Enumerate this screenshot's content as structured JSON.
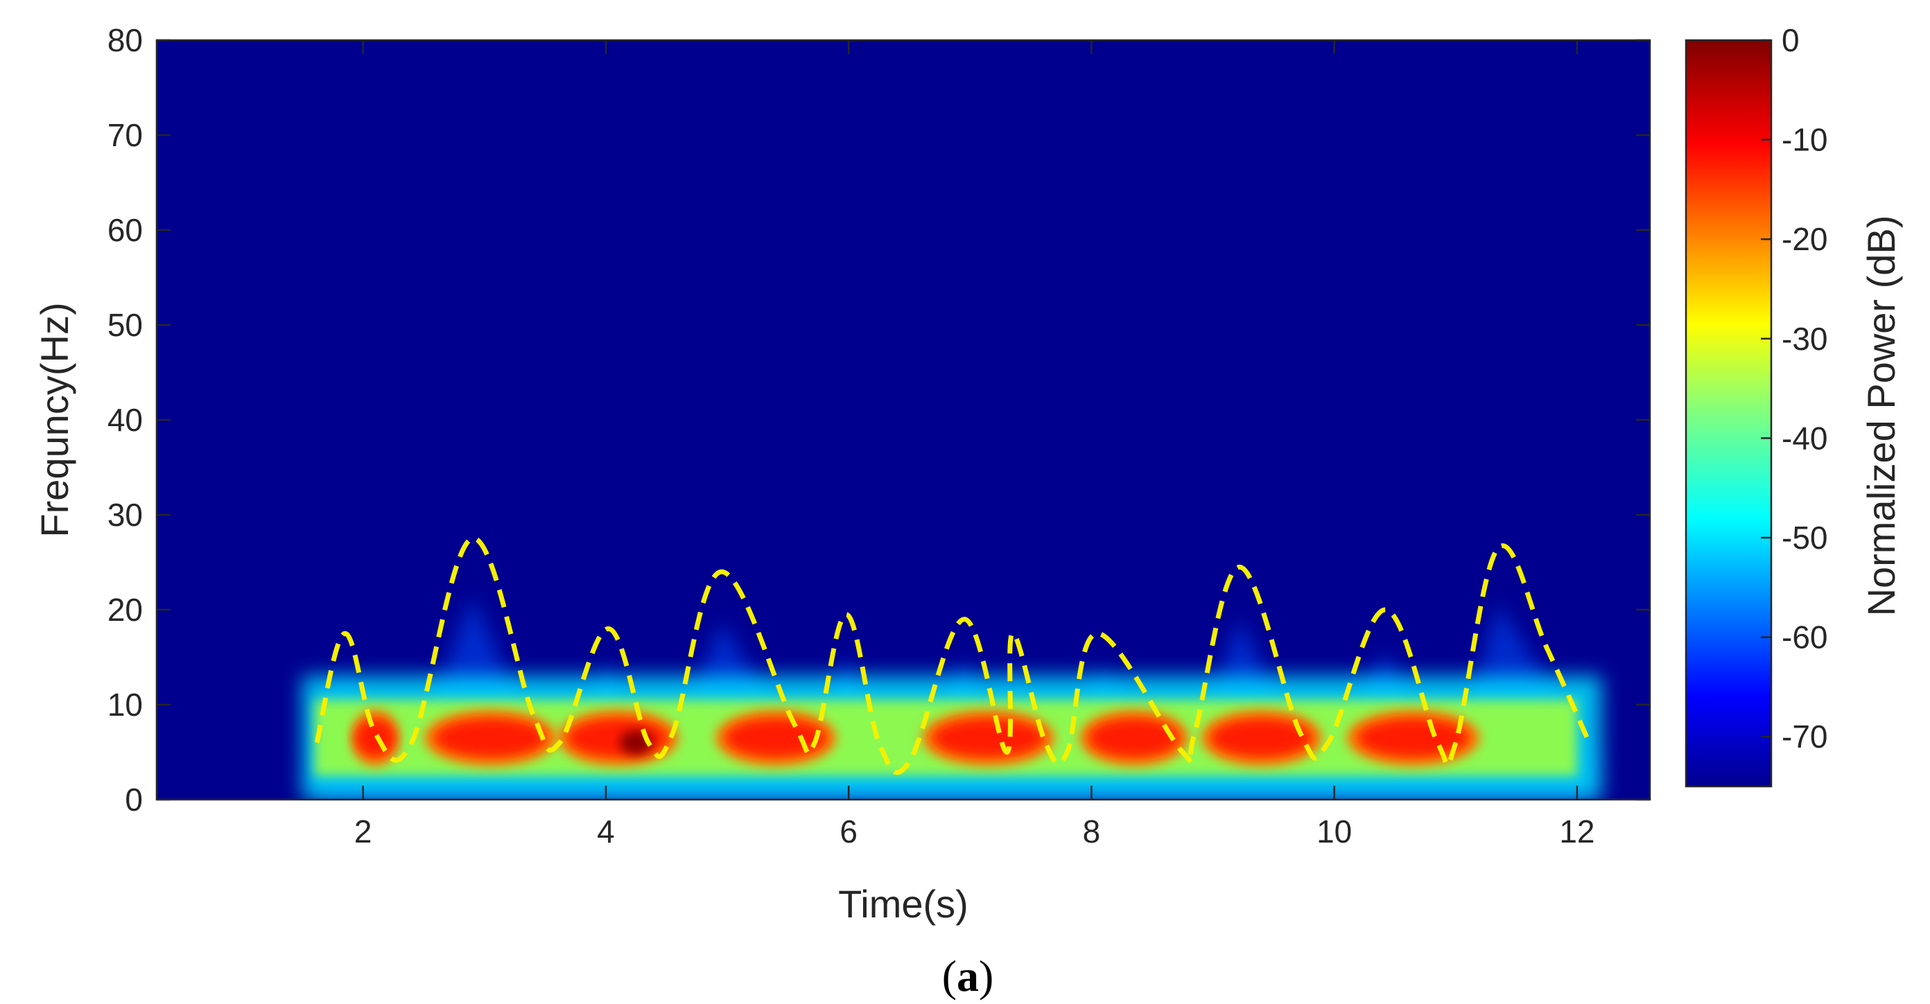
{
  "chart_data": {
    "type": "heatmap",
    "title": "",
    "xlabel": "Time(s)",
    "ylabel": "Frequncy(Hz)",
    "xlim": [
      0.3,
      12.6
    ],
    "ylim": [
      0,
      80
    ],
    "x_ticks": [
      "2",
      "4",
      "6",
      "8",
      "10",
      "12"
    ],
    "y_ticks": [
      "0",
      "10",
      "20",
      "30",
      "40",
      "50",
      "60",
      "70",
      "80"
    ],
    "colorbar": {
      "label": "Normalized Power (dB)",
      "range": [
        -75,
        0
      ],
      "ticks": [
        "0",
        "-10",
        "-20",
        "-30",
        "-40",
        "-50",
        "-60",
        "-70"
      ],
      "colormap": "jet"
    },
    "background_color": "#00008F",
    "energy_bands": [
      {
        "name": "",
        "t_start": 1.6,
        "t_end": 12.0,
        "f_center": 7.5,
        "level": -15
      },
      {
        "name": "",
        "t_start": 4.0,
        "t_end": 4.5,
        "f_center": 6.0,
        "level": -2
      }
    ],
    "envelope": {
      "style": "dashed",
      "color": "#F5F000",
      "points": [
        [
          1.62,
          6
        ],
        [
          1.85,
          17.5
        ],
        [
          2.1,
          7
        ],
        [
          2.4,
          6
        ],
        [
          2.9,
          27.5
        ],
        [
          3.4,
          9
        ],
        [
          3.62,
          6
        ],
        [
          4.02,
          18
        ],
        [
          4.35,
          6
        ],
        [
          4.55,
          7
        ],
        [
          4.95,
          24
        ],
        [
          5.55,
          8
        ],
        [
          5.72,
          6
        ],
        [
          5.98,
          19.5
        ],
        [
          6.25,
          6
        ],
        [
          6.5,
          4
        ],
        [
          6.95,
          19
        ],
        [
          7.3,
          5
        ],
        [
          7.35,
          17.5
        ],
        [
          7.62,
          6
        ],
        [
          7.8,
          5
        ],
        [
          8.05,
          17.5
        ],
        [
          8.75,
          5
        ],
        [
          8.85,
          7
        ],
        [
          9.22,
          24.5
        ],
        [
          9.72,
          7
        ],
        [
          9.95,
          6
        ],
        [
          10.42,
          20
        ],
        [
          10.85,
          6
        ],
        [
          11.0,
          6
        ],
        [
          11.35,
          26.5
        ],
        [
          11.75,
          16
        ],
        [
          12.1,
          6
        ]
      ]
    }
  },
  "caption": {
    "open": "(",
    "letter": "a",
    "close": ")"
  }
}
